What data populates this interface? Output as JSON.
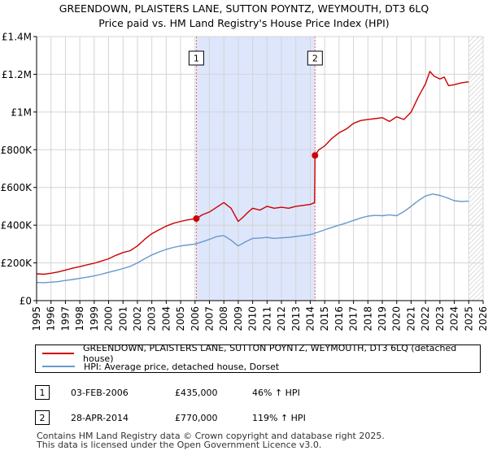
{
  "title_line1": "GREENDOWN, PLAISTERS LANE, SUTTON POYNTZ, WEYMOUTH, DT3 6LQ",
  "title_line2": "Price paid vs. HM Land Registry's House Price Index (HPI)",
  "colors": {
    "property": "#cc0000",
    "hpi": "#6699cc",
    "shade": "#dde6fb",
    "grid": "#d4d4d4"
  },
  "chart_data": {
    "type": "line",
    "xlim": [
      1995,
      2026
    ],
    "ylim": [
      0,
      1400000
    ],
    "x_ticks": [
      "1995",
      "1996",
      "1997",
      "1998",
      "1999",
      "2000",
      "2001",
      "2002",
      "2003",
      "2004",
      "2005",
      "2006",
      "2007",
      "2008",
      "2009",
      "2010",
      "2011",
      "2012",
      "2013",
      "2014",
      "2015",
      "2016",
      "2017",
      "2018",
      "2019",
      "2020",
      "2021",
      "2022",
      "2023",
      "2024",
      "2025",
      "2026"
    ],
    "y_ticks": [
      {
        "value": 0,
        "label": "£0"
      },
      {
        "value": 200000,
        "label": "£200K"
      },
      {
        "value": 400000,
        "label": "£400K"
      },
      {
        "value": 600000,
        "label": "£600K"
      },
      {
        "value": 800000,
        "label": "£800K"
      },
      {
        "value": 1000000,
        "label": "£1M"
      },
      {
        "value": 1200000,
        "label": "£1.2M"
      },
      {
        "value": 1400000,
        "label": "£1.4M"
      }
    ],
    "shaded_range": [
      2006.09,
      2014.33
    ],
    "hatched_from": 2025.0,
    "series": [
      {
        "name": "GREENDOWN, PLAISTERS LANE, SUTTON POYNTZ, WEYMOUTH, DT3 6LQ (detached house)",
        "key": "property",
        "x": [
          1995.0,
          1995.5,
          1996.0,
          1996.5,
          1997.0,
          1997.5,
          1998.0,
          1998.5,
          1999.0,
          1999.5,
          2000.0,
          2000.5,
          2001.0,
          2001.5,
          2002.0,
          2002.5,
          2003.0,
          2003.5,
          2004.0,
          2004.5,
          2005.0,
          2005.5,
          2006.09,
          2006.5,
          2007.0,
          2007.5,
          2008.0,
          2008.5,
          2009.0,
          2009.3,
          2009.7,
          2010.0,
          2010.5,
          2011.0,
          2011.5,
          2012.0,
          2012.5,
          2013.0,
          2013.5,
          2014.0,
          2014.3,
          2014.33,
          2014.6,
          2015.0,
          2015.5,
          2016.0,
          2016.5,
          2017.0,
          2017.5,
          2018.0,
          2018.5,
          2019.0,
          2019.5,
          2020.0,
          2020.5,
          2021.0,
          2021.5,
          2022.0,
          2022.3,
          2022.6,
          2023.0,
          2023.3,
          2023.6,
          2024.0,
          2024.5,
          2025.0
        ],
        "y": [
          142000,
          140000,
          145000,
          152000,
          162000,
          172000,
          180000,
          190000,
          198000,
          210000,
          222000,
          240000,
          255000,
          265000,
          290000,
          325000,
          355000,
          375000,
          395000,
          410000,
          420000,
          428000,
          435000,
          455000,
          470000,
          495000,
          520000,
          490000,
          420000,
          440000,
          470000,
          490000,
          480000,
          500000,
          490000,
          495000,
          490000,
          500000,
          505000,
          510000,
          520000,
          770000,
          800000,
          820000,
          860000,
          890000,
          910000,
          940000,
          955000,
          960000,
          965000,
          970000,
          950000,
          975000,
          960000,
          1000000,
          1080000,
          1150000,
          1215000,
          1190000,
          1175000,
          1185000,
          1140000,
          1145000,
          1155000,
          1160000
        ]
      },
      {
        "name": "HPI: Average price, detached house, Dorset",
        "key": "hpi",
        "x": [
          1995.0,
          1995.5,
          1996.0,
          1996.5,
          1997.0,
          1997.5,
          1998.0,
          1998.5,
          1999.0,
          1999.5,
          2000.0,
          2000.5,
          2001.0,
          2001.5,
          2002.0,
          2002.5,
          2003.0,
          2003.5,
          2004.0,
          2004.5,
          2005.0,
          2005.5,
          2006.0,
          2006.5,
          2007.0,
          2007.5,
          2008.0,
          2008.5,
          2009.0,
          2009.5,
          2010.0,
          2010.5,
          2011.0,
          2011.5,
          2012.0,
          2012.5,
          2013.0,
          2013.5,
          2014.0,
          2014.5,
          2015.0,
          2015.5,
          2016.0,
          2016.5,
          2017.0,
          2017.5,
          2018.0,
          2018.5,
          2019.0,
          2019.5,
          2020.0,
          2020.5,
          2021.0,
          2021.5,
          2022.0,
          2022.5,
          2023.0,
          2023.5,
          2024.0,
          2024.5,
          2025.0
        ],
        "y": [
          96000,
          95000,
          98000,
          101000,
          107000,
          112000,
          118000,
          124000,
          131000,
          140000,
          150000,
          160000,
          170000,
          182000,
          200000,
          222000,
          242000,
          258000,
          272000,
          282000,
          290000,
          295000,
          300000,
          312000,
          325000,
          340000,
          345000,
          320000,
          290000,
          312000,
          330000,
          332000,
          335000,
          330000,
          333000,
          335000,
          340000,
          345000,
          350000,
          362000,
          375000,
          388000,
          400000,
          412000,
          425000,
          438000,
          448000,
          452000,
          450000,
          455000,
          450000,
          472000,
          500000,
          530000,
          555000,
          565000,
          558000,
          545000,
          530000,
          525000,
          528000
        ]
      }
    ],
    "sale_markers": [
      {
        "label": "1",
        "x": 2006.09,
        "y": 435000
      },
      {
        "label": "2",
        "x": 2014.33,
        "y": 770000
      }
    ]
  },
  "legend": {
    "property_label": "GREENDOWN, PLAISTERS LANE, SUTTON POYNTZ, WEYMOUTH, DT3 6LQ (detached house)",
    "hpi_label": "HPI: Average price, detached house, Dorset"
  },
  "sales": [
    {
      "num": "1",
      "date": "03-FEB-2006",
      "price": "£435,000",
      "hpi": "46% ↑ HPI"
    },
    {
      "num": "2",
      "date": "28-APR-2014",
      "price": "£770,000",
      "hpi": "119% ↑ HPI"
    }
  ],
  "footer": {
    "line1": "Contains HM Land Registry data © Crown copyright and database right 2025.",
    "line2": "This data is licensed under the Open Government Licence v3.0."
  }
}
